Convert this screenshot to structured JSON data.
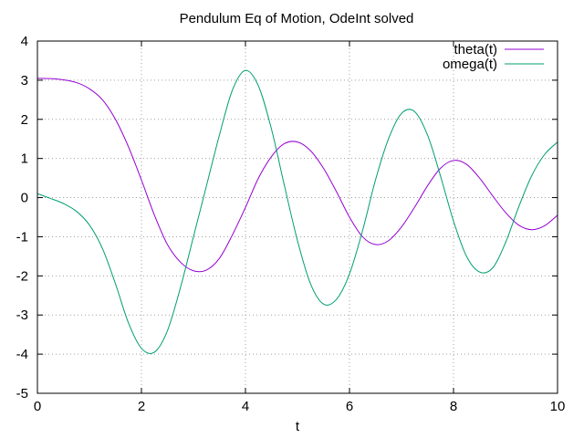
{
  "chart_data": {
    "type": "line",
    "title": "Pendulum Eq of Motion, OdeInt solved",
    "xlabel": "t",
    "ylabel": "",
    "xlim": [
      0,
      10
    ],
    "ylim": [
      -5,
      4
    ],
    "x_ticks": [
      0,
      2,
      4,
      6,
      8,
      10
    ],
    "y_ticks": [
      -5,
      -4,
      -3,
      -2,
      -1,
      0,
      1,
      2,
      3,
      4
    ],
    "grid": true,
    "legend_position": "top-right",
    "series": [
      {
        "name": "theta(t)",
        "color": "#9400d3",
        "x": [
          0,
          0.25,
          0.5,
          0.75,
          1.0,
          1.25,
          1.5,
          1.75,
          2.0,
          2.25,
          2.5,
          2.75,
          3.0,
          3.25,
          3.5,
          3.75,
          4.0,
          4.25,
          4.5,
          4.75,
          5.0,
          5.25,
          5.5,
          5.75,
          6.0,
          6.25,
          6.5,
          6.75,
          7.0,
          7.25,
          7.5,
          7.75,
          8.0,
          8.25,
          8.5,
          8.75,
          9.0,
          9.25,
          9.5,
          9.75,
          10.0
        ],
        "y": [
          3.05,
          3.04,
          3.01,
          2.94,
          2.78,
          2.5,
          2.0,
          1.3,
          0.45,
          -0.45,
          -1.2,
          -1.65,
          -1.87,
          -1.85,
          -1.55,
          -0.95,
          -0.25,
          0.5,
          1.05,
          1.38,
          1.42,
          1.2,
          0.75,
          0.15,
          -0.5,
          -1.0,
          -1.2,
          -1.1,
          -0.75,
          -0.25,
          0.3,
          0.75,
          0.95,
          0.85,
          0.5,
          0.05,
          -0.38,
          -0.7,
          -0.82,
          -0.72,
          -0.45
        ]
      },
      {
        "name": "omega(t)",
        "color": "#009e73",
        "x": [
          0,
          0.25,
          0.5,
          0.75,
          1.0,
          1.25,
          1.5,
          1.75,
          2.0,
          2.25,
          2.5,
          2.75,
          3.0,
          3.25,
          3.5,
          3.75,
          4.0,
          4.25,
          4.5,
          4.75,
          5.0,
          5.25,
          5.5,
          5.75,
          6.0,
          6.25,
          6.5,
          6.75,
          7.0,
          7.25,
          7.5,
          7.75,
          8.0,
          8.25,
          8.5,
          8.75,
          9.0,
          9.25,
          9.5,
          9.75,
          10.0
        ],
        "y": [
          0.1,
          -0.02,
          -0.15,
          -0.35,
          -0.7,
          -1.3,
          -2.2,
          -3.2,
          -3.85,
          -3.95,
          -3.4,
          -2.3,
          -1.0,
          0.3,
          1.6,
          2.75,
          3.25,
          2.85,
          1.75,
          0.3,
          -1.1,
          -2.2,
          -2.72,
          -2.6,
          -1.95,
          -0.85,
          0.45,
          1.5,
          2.15,
          2.2,
          1.6,
          0.55,
          -0.6,
          -1.5,
          -1.9,
          -1.8,
          -1.15,
          -0.25,
          0.55,
          1.1,
          1.42
        ]
      }
    ]
  }
}
